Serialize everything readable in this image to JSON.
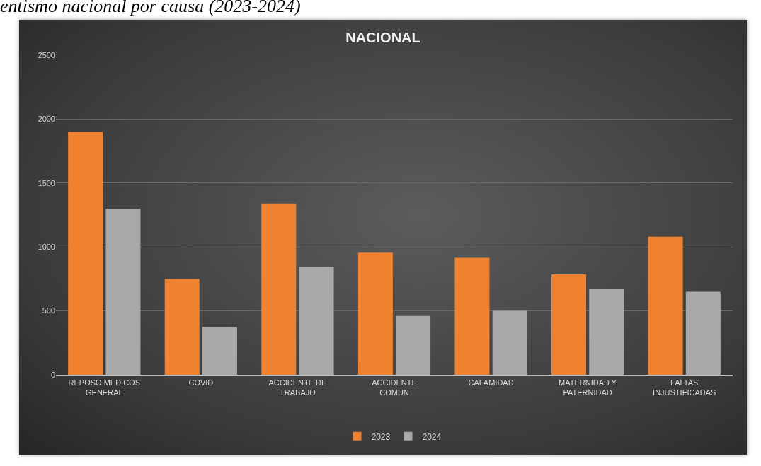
{
  "chart_data": {
    "type": "bar",
    "title": "NACIONAL",
    "annotations": [
      "entismo nacional por causa (2023-2024)"
    ],
    "categories": [
      "REPOSO MEDICOS GENERAL",
      "COVID",
      "ACCIDENTE DE TRABAJO",
      "ACCIDENTE COMUN",
      "CALAMIDAD",
      "MATERNIDAD Y PATERNIDAD",
      "FALTAS INJUSTIFICADAS"
    ],
    "series": [
      {
        "name": "2023",
        "color": "#f0822f",
        "values": [
          1900,
          750,
          1340,
          955,
          915,
          785,
          1080
        ]
      },
      {
        "name": "2024",
        "color": "#a9a9a9",
        "values": [
          1300,
          375,
          845,
          460,
          500,
          675,
          650
        ]
      }
    ],
    "ylim": [
      0,
      2500
    ],
    "yticks": [
      0,
      500,
      1000,
      1500,
      2000,
      2500
    ],
    "grid": "y",
    "legend": "bottom"
  }
}
